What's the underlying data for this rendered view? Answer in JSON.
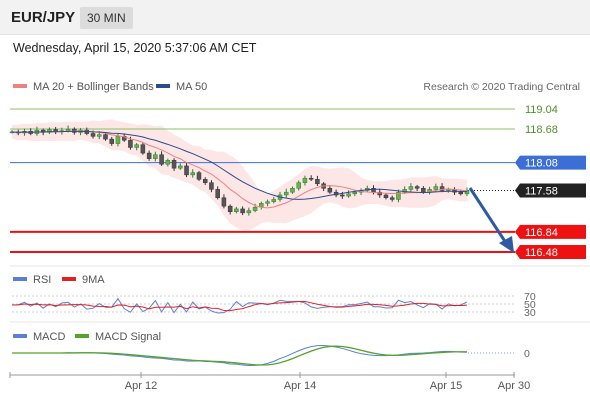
{
  "header": {
    "pair": "EUR/JPY",
    "timeframe": "30 MIN"
  },
  "datetime": "Wednesday, April 15, 2020 5:37:06 AM CET",
  "colors": {
    "ma20": "#f08080",
    "ma50": "#2a4b8d",
    "band_fill": "#fde2e2",
    "resistance": "#8cc063",
    "pivot": "#3b6fd6",
    "support": "#ee1111",
    "current": "#222222",
    "arrow": "#2d5aa0",
    "rsi": "#5b7fd6",
    "rsi_ma": "#e22222",
    "macd": "#5b7fd6",
    "macd_signal": "#55a32a"
  },
  "chart_data": [
    {
      "type": "line",
      "panel": "price",
      "legend": [
        "MA 20 + Bollinger Bands",
        "MA 50"
      ],
      "credit": "Research © 2020 Trading Central",
      "ylim": [
        116.3,
        119.2
      ],
      "levels": [
        {
          "value": 119.04,
          "label": "119.04",
          "kind": "resistance"
        },
        {
          "value": 118.68,
          "label": "118.68",
          "kind": "resistance"
        },
        {
          "value": 118.08,
          "label": "118.08",
          "kind": "pivot"
        },
        {
          "value": 117.58,
          "label": "117.58",
          "kind": "current"
        },
        {
          "value": 116.84,
          "label": "116.84",
          "kind": "support"
        },
        {
          "value": 116.48,
          "label": "116.48",
          "kind": "support"
        }
      ],
      "close_series": [
        118.63,
        118.61,
        118.64,
        118.6,
        118.66,
        118.62,
        118.67,
        118.63,
        118.65,
        118.68,
        118.62,
        118.66,
        118.6,
        118.55,
        118.58,
        118.5,
        118.42,
        118.55,
        118.48,
        118.35,
        118.4,
        118.25,
        118.15,
        118.22,
        118.05,
        118.12,
        117.98,
        118.02,
        117.86,
        117.9,
        117.78,
        117.72,
        117.6,
        117.45,
        117.3,
        117.2,
        117.25,
        117.18,
        117.22,
        117.28,
        117.35,
        117.38,
        117.42,
        117.5,
        117.55,
        117.62,
        117.72,
        117.8,
        117.78,
        117.7,
        117.62,
        117.55,
        117.5,
        117.48,
        117.52,
        117.55,
        117.58,
        117.62,
        117.55,
        117.5,
        117.45,
        117.42,
        117.55,
        117.6,
        117.65,
        117.62,
        117.55,
        117.6,
        117.65,
        117.58,
        117.6,
        117.55,
        117.52,
        117.58
      ]
    },
    {
      "type": "line",
      "panel": "rsi",
      "legend": [
        "RSI",
        "9MA"
      ],
      "ticks": [
        "70",
        "50",
        "30"
      ]
    },
    {
      "type": "line",
      "panel": "macd",
      "legend": [
        "MACD",
        "MACD Signal"
      ],
      "ticks": [
        "0"
      ]
    }
  ],
  "xaxis": {
    "ticks": [
      "Apr 12",
      "Apr 14",
      "Apr 15",
      "Apr 30"
    ]
  }
}
